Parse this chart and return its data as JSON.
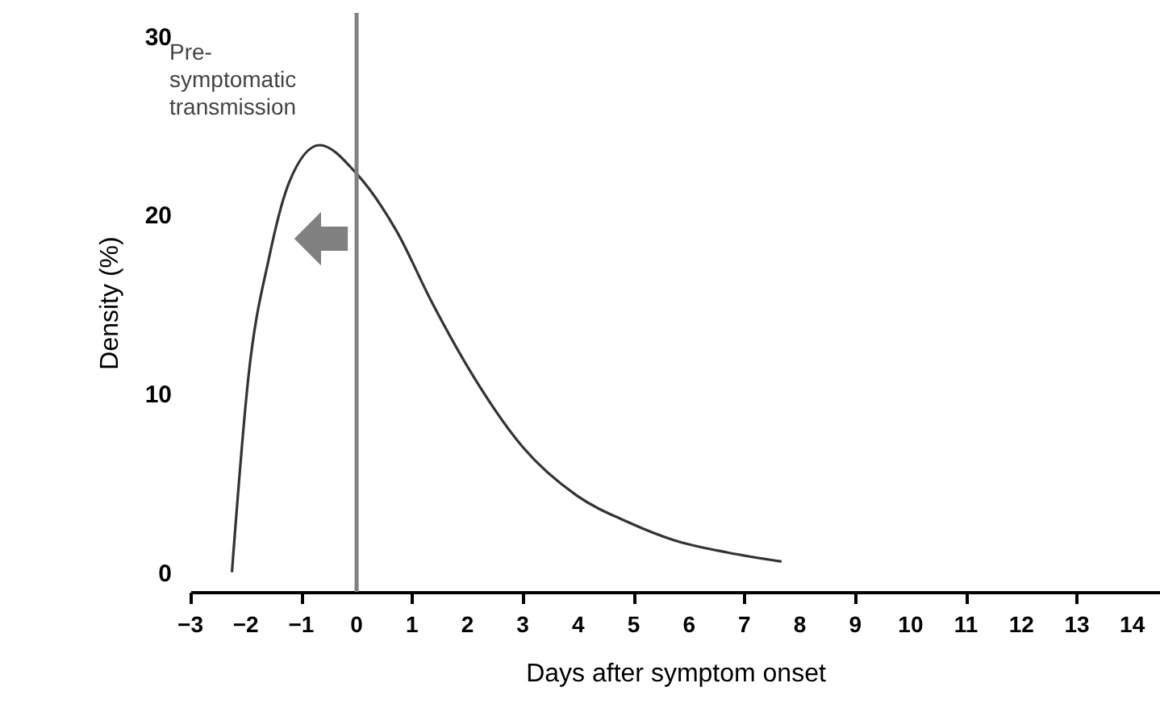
{
  "chart_data": {
    "type": "line",
    "xlabel": "Days after symptom onset",
    "ylabel": "Density (%)",
    "series": [
      {
        "color": "#333333",
        "x": [
          -2.25,
          -1.95,
          -1.58,
          -1.22,
          -0.67,
          0,
          0.72,
          1.36,
          2.1,
          3.0,
          3.97,
          4.9,
          5.72,
          6.7,
          7.67
        ],
        "values": [
          0,
          11.0,
          17.6,
          21.8,
          23.9,
          22.3,
          19.1,
          15.1,
          11.0,
          7.0,
          4.3,
          2.8,
          1.8,
          1.1,
          0.6
        ]
      }
    ],
    "xlim": [
      -3,
      14.5
    ],
    "xticks": [
      -3,
      -2,
      -1,
      0,
      1,
      2,
      3,
      4,
      5,
      6,
      7,
      8,
      9,
      10,
      11,
      12,
      13,
      14
    ],
    "ylim": [
      -1.1,
      31.3
    ],
    "yticks": [
      0,
      10,
      20,
      30
    ],
    "ref_lines": [
      {
        "axis": "x",
        "value": 0,
        "color": "#808080"
      }
    ],
    "annotations": [
      "Pre-symptomatic transmission"
    ],
    "grid": false,
    "marker": "none",
    "line_style": "solid"
  }
}
